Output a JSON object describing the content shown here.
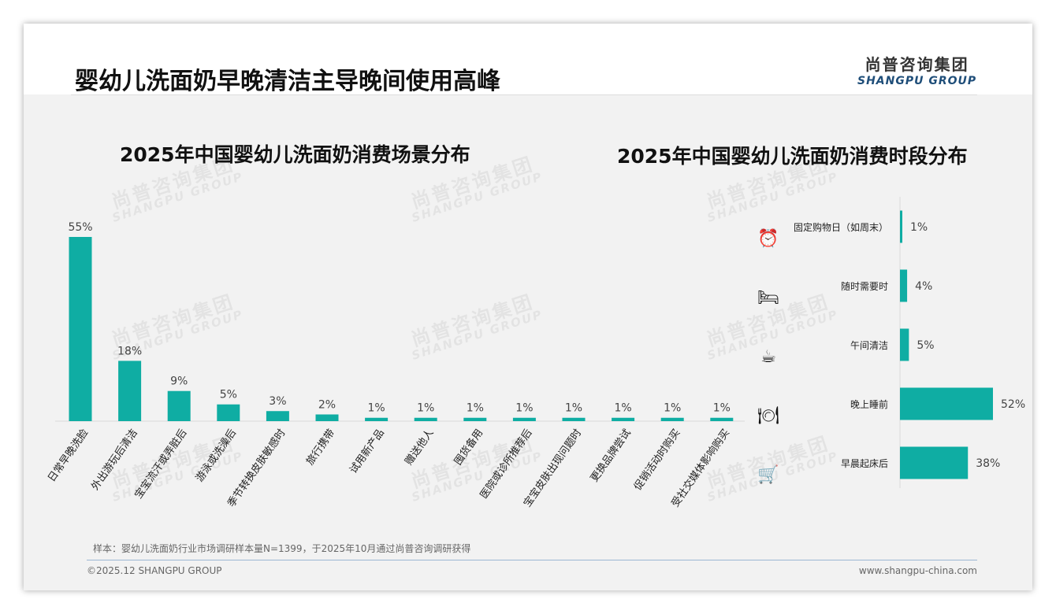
{
  "header": {
    "title": "婴幼儿洗面奶早晚清洁主导晚间使用高峰",
    "logo_cn": "尚普咨询集团",
    "logo_en": "SHANGPU GROUP"
  },
  "watermark": {
    "cn": "尚普咨询集团",
    "en": "SHANGPU GROUP"
  },
  "chart_data": [
    {
      "type": "bar",
      "title": "2025年中国婴幼儿洗面奶消费场景分布",
      "categories": [
        "日常早晚洗脸",
        "外出游玩后清洁",
        "宝宝流汗或弄脏后",
        "游泳或洗澡后",
        "季节转换皮肤敏感时",
        "旅行携带",
        "试用新产品",
        "赠送他人",
        "囤货备用",
        "医院或诊所推荐后",
        "宝宝皮肤出现问题时",
        "更换品牌尝试",
        "促销活动时购买",
        "受社交媒体影响购买"
      ],
      "values": [
        55,
        18,
        9,
        5,
        3,
        2,
        1,
        1,
        1,
        1,
        1,
        1,
        1,
        1
      ],
      "labels": [
        "55%",
        "18%",
        "9%",
        "5%",
        "3%",
        "2%",
        "1%",
        "1%",
        "1%",
        "1%",
        "1%",
        "1%",
        "1%",
        "1%"
      ],
      "unit": "%",
      "ylim": [
        0,
        60
      ],
      "color": "#0fada3"
    },
    {
      "type": "bar",
      "orientation": "horizontal",
      "title": "2025年中国婴幼儿洗面奶消费时段分布",
      "categories": [
        "固定购物日（如周末）",
        "随时需要时",
        "午间清洁",
        "晚上睡前",
        "早晨起床后"
      ],
      "icons": [
        "alarm-clock-icon",
        "bed-icon",
        "coffee-cup-icon",
        "plate-cutlery-icon",
        "shopping-cart-icon"
      ],
      "values": [
        1,
        4,
        5,
        52,
        38
      ],
      "labels": [
        "1%",
        "4%",
        "5%",
        "52%",
        "38%"
      ],
      "unit": "%",
      "color": "#0fada3"
    }
  ],
  "footer": {
    "note": "样本：婴幼儿洗面奶行业市场调研样本量N=1399，于2025年10月通过尚普咨询调研获得",
    "copyright": "©2025.12 SHANGPU GROUP",
    "website": "www.shangpu-china.com"
  }
}
